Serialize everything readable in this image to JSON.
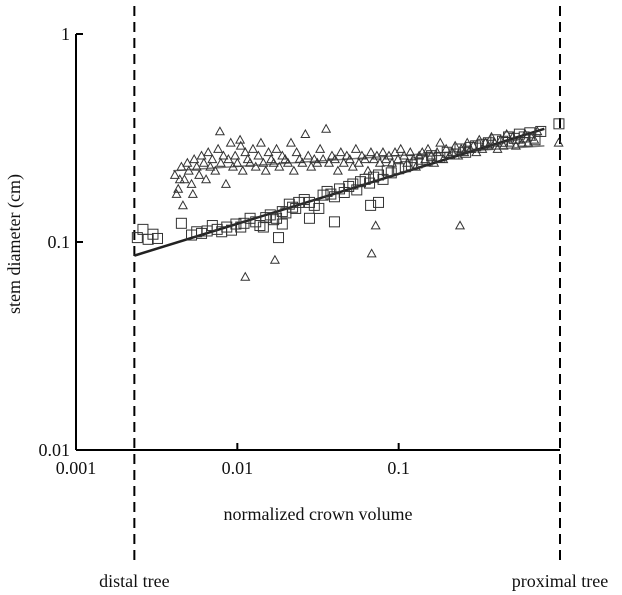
{
  "chart_data": {
    "type": "scatter",
    "xlabel": "normalized crown volume",
    "ylabel": "stem diameter (cm)",
    "xscale": "log",
    "yscale": "log",
    "xlim": [
      0.001,
      1
    ],
    "ylim": [
      0.01,
      1
    ],
    "x_ticks": [
      {
        "value": 0.001,
        "label": "0.001"
      },
      {
        "value": 0.01,
        "label": "0.01"
      },
      {
        "value": 0.1,
        "label": "0.1"
      }
    ],
    "y_ticks": [
      {
        "value": 1,
        "label": "1"
      },
      {
        "value": 0.1,
        "label": "0.1"
      },
      {
        "value": 0.01,
        "label": "0.01"
      }
    ],
    "reference_lines": [
      {
        "x": 0.0023,
        "label": "distal tree",
        "style": "dashed"
      },
      {
        "x": 1.0,
        "label": "proximal tree",
        "style": "dashed"
      }
    ],
    "series": [
      {
        "marker": "triangle",
        "points": [
          [
            0.0041,
            0.21
          ],
          [
            0.0043,
            0.18
          ],
          [
            0.0045,
            0.23
          ],
          [
            0.0047,
            0.2
          ],
          [
            0.0049,
            0.24
          ],
          [
            0.005,
            0.22
          ],
          [
            0.0052,
            0.19
          ],
          [
            0.0054,
            0.25
          ],
          [
            0.0056,
            0.23
          ],
          [
            0.0058,
            0.21
          ],
          [
            0.006,
            0.26
          ],
          [
            0.0062,
            0.24
          ],
          [
            0.0064,
            0.2
          ],
          [
            0.0066,
            0.27
          ],
          [
            0.0068,
            0.23
          ],
          [
            0.007,
            0.25
          ],
          [
            0.0073,
            0.22
          ],
          [
            0.0076,
            0.28
          ],
          [
            0.0079,
            0.24
          ],
          [
            0.0082,
            0.26
          ],
          [
            0.0085,
            0.19
          ],
          [
            0.0088,
            0.25
          ],
          [
            0.0091,
            0.3
          ],
          [
            0.0094,
            0.23
          ],
          [
            0.0097,
            0.26
          ],
          [
            0.01,
            0.24
          ],
          [
            0.0104,
            0.31
          ],
          [
            0.0108,
            0.22
          ],
          [
            0.0112,
            0.27
          ],
          [
            0.0116,
            0.25
          ],
          [
            0.012,
            0.24
          ],
          [
            0.0125,
            0.28
          ],
          [
            0.013,
            0.23
          ],
          [
            0.0135,
            0.26
          ],
          [
            0.014,
            0.3
          ],
          [
            0.0145,
            0.24
          ],
          [
            0.015,
            0.22
          ],
          [
            0.0156,
            0.27
          ],
          [
            0.0162,
            0.25
          ],
          [
            0.0168,
            0.24
          ],
          [
            0.0175,
            0.28
          ],
          [
            0.0182,
            0.23
          ],
          [
            0.019,
            0.26
          ],
          [
            0.0198,
            0.25
          ],
          [
            0.0206,
            0.24
          ],
          [
            0.0215,
            0.3
          ],
          [
            0.0224,
            0.22
          ],
          [
            0.0233,
            0.27
          ],
          [
            0.0243,
            0.25
          ],
          [
            0.0253,
            0.24
          ],
          [
            0.0264,
            0.33
          ],
          [
            0.0275,
            0.26
          ],
          [
            0.0287,
            0.23
          ],
          [
            0.03,
            0.25
          ],
          [
            0.0313,
            0.24
          ],
          [
            0.0326,
            0.28
          ],
          [
            0.034,
            0.25
          ],
          [
            0.0355,
            0.35
          ],
          [
            0.037,
            0.24
          ],
          [
            0.0386,
            0.26
          ],
          [
            0.0403,
            0.25
          ],
          [
            0.042,
            0.22
          ],
          [
            0.0438,
            0.27
          ],
          [
            0.0457,
            0.24
          ],
          [
            0.0477,
            0.26
          ],
          [
            0.0498,
            0.25
          ],
          [
            0.052,
            0.23
          ],
          [
            0.0543,
            0.28
          ],
          [
            0.0567,
            0.24
          ],
          [
            0.0592,
            0.26
          ],
          [
            0.0618,
            0.25
          ],
          [
            0.0645,
            0.22
          ],
          [
            0.0673,
            0.27
          ],
          [
            0.0702,
            0.25
          ],
          [
            0.0733,
            0.26
          ],
          [
            0.0765,
            0.24
          ],
          [
            0.0799,
            0.27
          ],
          [
            0.0834,
            0.25
          ],
          [
            0.0871,
            0.26
          ],
          [
            0.0909,
            0.24
          ],
          [
            0.0949,
            0.27
          ],
          [
            0.099,
            0.25
          ],
          [
            0.103,
            0.28
          ],
          [
            0.108,
            0.26
          ],
          [
            0.113,
            0.24
          ],
          [
            0.118,
            0.27
          ],
          [
            0.123,
            0.25
          ],
          [
            0.128,
            0.23
          ],
          [
            0.134,
            0.26
          ],
          [
            0.14,
            0.27
          ],
          [
            0.146,
            0.25
          ],
          [
            0.152,
            0.28
          ],
          [
            0.159,
            0.26
          ],
          [
            0.166,
            0.24
          ],
          [
            0.173,
            0.27
          ],
          [
            0.181,
            0.3
          ],
          [
            0.189,
            0.25
          ],
          [
            0.197,
            0.28
          ],
          [
            0.206,
            0.26
          ],
          [
            0.215,
            0.27
          ],
          [
            0.224,
            0.29
          ],
          [
            0.234,
            0.26
          ],
          [
            0.244,
            0.28
          ],
          [
            0.255,
            0.27
          ],
          [
            0.266,
            0.3
          ],
          [
            0.278,
            0.28
          ],
          [
            0.29,
            0.29
          ],
          [
            0.303,
            0.27
          ],
          [
            0.316,
            0.31
          ],
          [
            0.33,
            0.28
          ],
          [
            0.345,
            0.3
          ],
          [
            0.36,
            0.29
          ],
          [
            0.376,
            0.32
          ],
          [
            0.393,
            0.3
          ],
          [
            0.41,
            0.28
          ],
          [
            0.428,
            0.31
          ],
          [
            0.447,
            0.29
          ],
          [
            0.467,
            0.33
          ],
          [
            0.488,
            0.3
          ],
          [
            0.51,
            0.32
          ],
          [
            0.533,
            0.29
          ],
          [
            0.557,
            0.31
          ],
          [
            0.582,
            0.3
          ],
          [
            0.608,
            0.33
          ],
          [
            0.635,
            0.3
          ],
          [
            0.663,
            0.32
          ],
          [
            0.693,
            0.31
          ],
          [
            0.724,
            0.34
          ],
          [
            0.0078,
            0.34
          ],
          [
            0.0105,
            0.29
          ],
          [
            0.0112,
            0.068
          ],
          [
            0.0171,
            0.082
          ],
          [
            0.072,
            0.12
          ],
          [
            0.068,
            0.088
          ],
          [
            0.24,
            0.12
          ],
          [
            0.0042,
            0.17
          ],
          [
            0.0053,
            0.17
          ],
          [
            0.0044,
            0.2
          ],
          [
            0.0046,
            0.15
          ],
          [
            0.98,
            0.3
          ]
        ]
      },
      {
        "marker": "square",
        "points": [
          [
            0.0024,
            0.105
          ],
          [
            0.0026,
            0.115
          ],
          [
            0.0028,
            0.103
          ],
          [
            0.003,
            0.109
          ],
          [
            0.0032,
            0.104
          ],
          [
            0.0045,
            0.123
          ],
          [
            0.0052,
            0.108
          ],
          [
            0.0056,
            0.112
          ],
          [
            0.006,
            0.11
          ],
          [
            0.0065,
            0.113
          ],
          [
            0.007,
            0.12
          ],
          [
            0.0075,
            0.115
          ],
          [
            0.008,
            0.112
          ],
          [
            0.0086,
            0.118
          ],
          [
            0.0092,
            0.114
          ],
          [
            0.0098,
            0.122
          ],
          [
            0.0105,
            0.118
          ],
          [
            0.011,
            0.123
          ],
          [
            0.012,
            0.13
          ],
          [
            0.013,
            0.125
          ],
          [
            0.0138,
            0.12
          ],
          [
            0.0145,
            0.118
          ],
          [
            0.015,
            0.131
          ],
          [
            0.016,
            0.135
          ],
          [
            0.0168,
            0.128
          ],
          [
            0.0175,
            0.13
          ],
          [
            0.018,
            0.105
          ],
          [
            0.019,
            0.14
          ],
          [
            0.02,
            0.138
          ],
          [
            0.021,
            0.152
          ],
          [
            0.022,
            0.147
          ],
          [
            0.023,
            0.145
          ],
          [
            0.024,
            0.155
          ],
          [
            0.026,
            0.16
          ],
          [
            0.028,
            0.155
          ],
          [
            0.03,
            0.15
          ],
          [
            0.032,
            0.145
          ],
          [
            0.034,
            0.168
          ],
          [
            0.036,
            0.175
          ],
          [
            0.038,
            0.17
          ],
          [
            0.04,
            0.165
          ],
          [
            0.043,
            0.18
          ],
          [
            0.046,
            0.173
          ],
          [
            0.049,
            0.185
          ],
          [
            0.052,
            0.19
          ],
          [
            0.055,
            0.178
          ],
          [
            0.058,
            0.195
          ],
          [
            0.062,
            0.2
          ],
          [
            0.066,
            0.192
          ],
          [
            0.07,
            0.205
          ],
          [
            0.075,
            0.21
          ],
          [
            0.08,
            0.2
          ],
          [
            0.085,
            0.22
          ],
          [
            0.09,
            0.215
          ],
          [
            0.1,
            0.225
          ],
          [
            0.11,
            0.23
          ],
          [
            0.12,
            0.235
          ],
          [
            0.13,
            0.24
          ],
          [
            0.14,
            0.25
          ],
          [
            0.15,
            0.245
          ],
          [
            0.16,
            0.26
          ],
          [
            0.18,
            0.255
          ],
          [
            0.2,
            0.27
          ],
          [
            0.22,
            0.265
          ],
          [
            0.24,
            0.28
          ],
          [
            0.26,
            0.27
          ],
          [
            0.28,
            0.285
          ],
          [
            0.3,
            0.29
          ],
          [
            0.33,
            0.295
          ],
          [
            0.36,
            0.3
          ],
          [
            0.4,
            0.31
          ],
          [
            0.44,
            0.305
          ],
          [
            0.48,
            0.32
          ],
          [
            0.52,
            0.315
          ],
          [
            0.56,
            0.33
          ],
          [
            0.6,
            0.32
          ],
          [
            0.65,
            0.335
          ],
          [
            0.7,
            0.31
          ],
          [
            0.76,
            0.34
          ],
          [
            0.985,
            0.37
          ],
          [
            0.067,
            0.15
          ],
          [
            0.075,
            0.155
          ],
          [
            0.04,
            0.125
          ],
          [
            0.028,
            0.13
          ],
          [
            0.019,
            0.122
          ]
        ]
      }
    ],
    "fit_lines": [
      {
        "marker": "triangle",
        "from": [
          0.004,
          0.22
        ],
        "to": [
          0.8,
          0.29
        ],
        "color": "#777777"
      },
      {
        "marker": "square",
        "from": [
          0.0023,
          0.086
        ],
        "to": [
          0.8,
          0.35
        ],
        "color": "#222222"
      }
    ]
  }
}
